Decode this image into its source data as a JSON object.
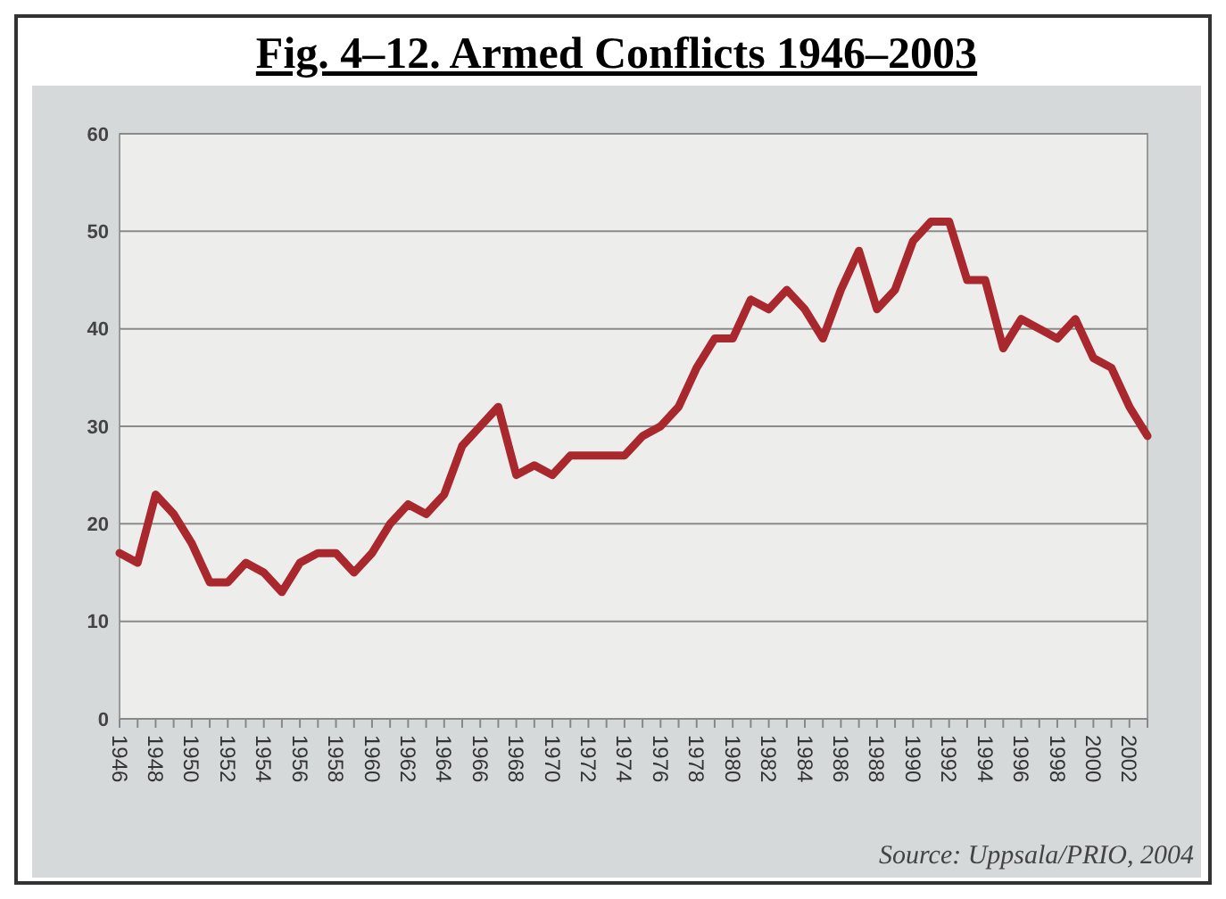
{
  "chart_data": {
    "type": "line",
    "title": "Fig. 4–12. Armed Conflicts 1946–2003",
    "annotations": [
      "Source: Uppsala/PRIO, 2004"
    ],
    "x": [
      1946,
      1947,
      1948,
      1949,
      1950,
      1951,
      1952,
      1953,
      1954,
      1955,
      1956,
      1957,
      1958,
      1959,
      1960,
      1961,
      1962,
      1963,
      1964,
      1965,
      1966,
      1967,
      1968,
      1969,
      1970,
      1971,
      1972,
      1973,
      1974,
      1975,
      1976,
      1977,
      1978,
      1979,
      1980,
      1981,
      1982,
      1983,
      1984,
      1985,
      1986,
      1987,
      1988,
      1989,
      1990,
      1991,
      1992,
      1993,
      1994,
      1995,
      1996,
      1997,
      1998,
      1999,
      2000,
      2001,
      2002,
      2003
    ],
    "series": [
      {
        "color": "#a8282e",
        "values": [
          17,
          16,
          23,
          21,
          18,
          14,
          14,
          16,
          15,
          13,
          16,
          17,
          17,
          15,
          17,
          20,
          22,
          21,
          23,
          28,
          30,
          32,
          25,
          26,
          25,
          27,
          27,
          27,
          27,
          29,
          30,
          32,
          36,
          39,
          39,
          43,
          42,
          44,
          42,
          39,
          44,
          48,
          42,
          44,
          49,
          51,
          51,
          45,
          45,
          38,
          41,
          40,
          39,
          41,
          37,
          36,
          32,
          29
        ]
      }
    ],
    "xlim": [
      1946,
      2003
    ],
    "xticks": [
      1946,
      {
        "value": 1947,
        "label": null
      },
      1948,
      {
        "value": 1949,
        "label": null
      },
      1950,
      {
        "value": 1951,
        "label": null
      },
      1952,
      {
        "value": 1953,
        "label": null
      },
      1954,
      {
        "value": 1955,
        "label": null
      },
      1956,
      {
        "value": 1957,
        "label": null
      },
      1958,
      {
        "value": 1959,
        "label": null
      },
      1960,
      {
        "value": 1961,
        "label": null
      },
      1962,
      {
        "value": 1963,
        "label": null
      },
      1964,
      {
        "value": 1965,
        "label": null
      },
      1966,
      {
        "value": 1967,
        "label": null
      },
      1968,
      {
        "value": 1969,
        "label": null
      },
      1970,
      {
        "value": 1971,
        "label": null
      },
      1972,
      {
        "value": 1973,
        "label": null
      },
      1974,
      {
        "value": 1975,
        "label": null
      },
      1976,
      {
        "value": 1977,
        "label": null
      },
      1978,
      {
        "value": 1979,
        "label": null
      },
      1980,
      {
        "value": 1981,
        "label": null
      },
      1982,
      {
        "value": 1983,
        "label": null
      },
      1984,
      {
        "value": 1985,
        "label": null
      },
      1986,
      {
        "value": 1987,
        "label": null
      },
      1988,
      {
        "value": 1989,
        "label": null
      },
      1990,
      {
        "value": 1991,
        "label": null
      },
      1992,
      {
        "value": 1993,
        "label": null
      },
      1994,
      {
        "value": 1995,
        "label": null
      },
      1996,
      {
        "value": 1997,
        "label": null
      },
      1998,
      {
        "value": 1999,
        "label": null
      },
      2000,
      {
        "value": 2001,
        "label": null
      },
      2002,
      {
        "value": 2003,
        "label": null
      }
    ],
    "ylim": [
      0,
      60
    ],
    "yticks": [
      0,
      10,
      20,
      30,
      40,
      50,
      60
    ],
    "grid": "y",
    "marker": "none",
    "line_style": "solid"
  }
}
